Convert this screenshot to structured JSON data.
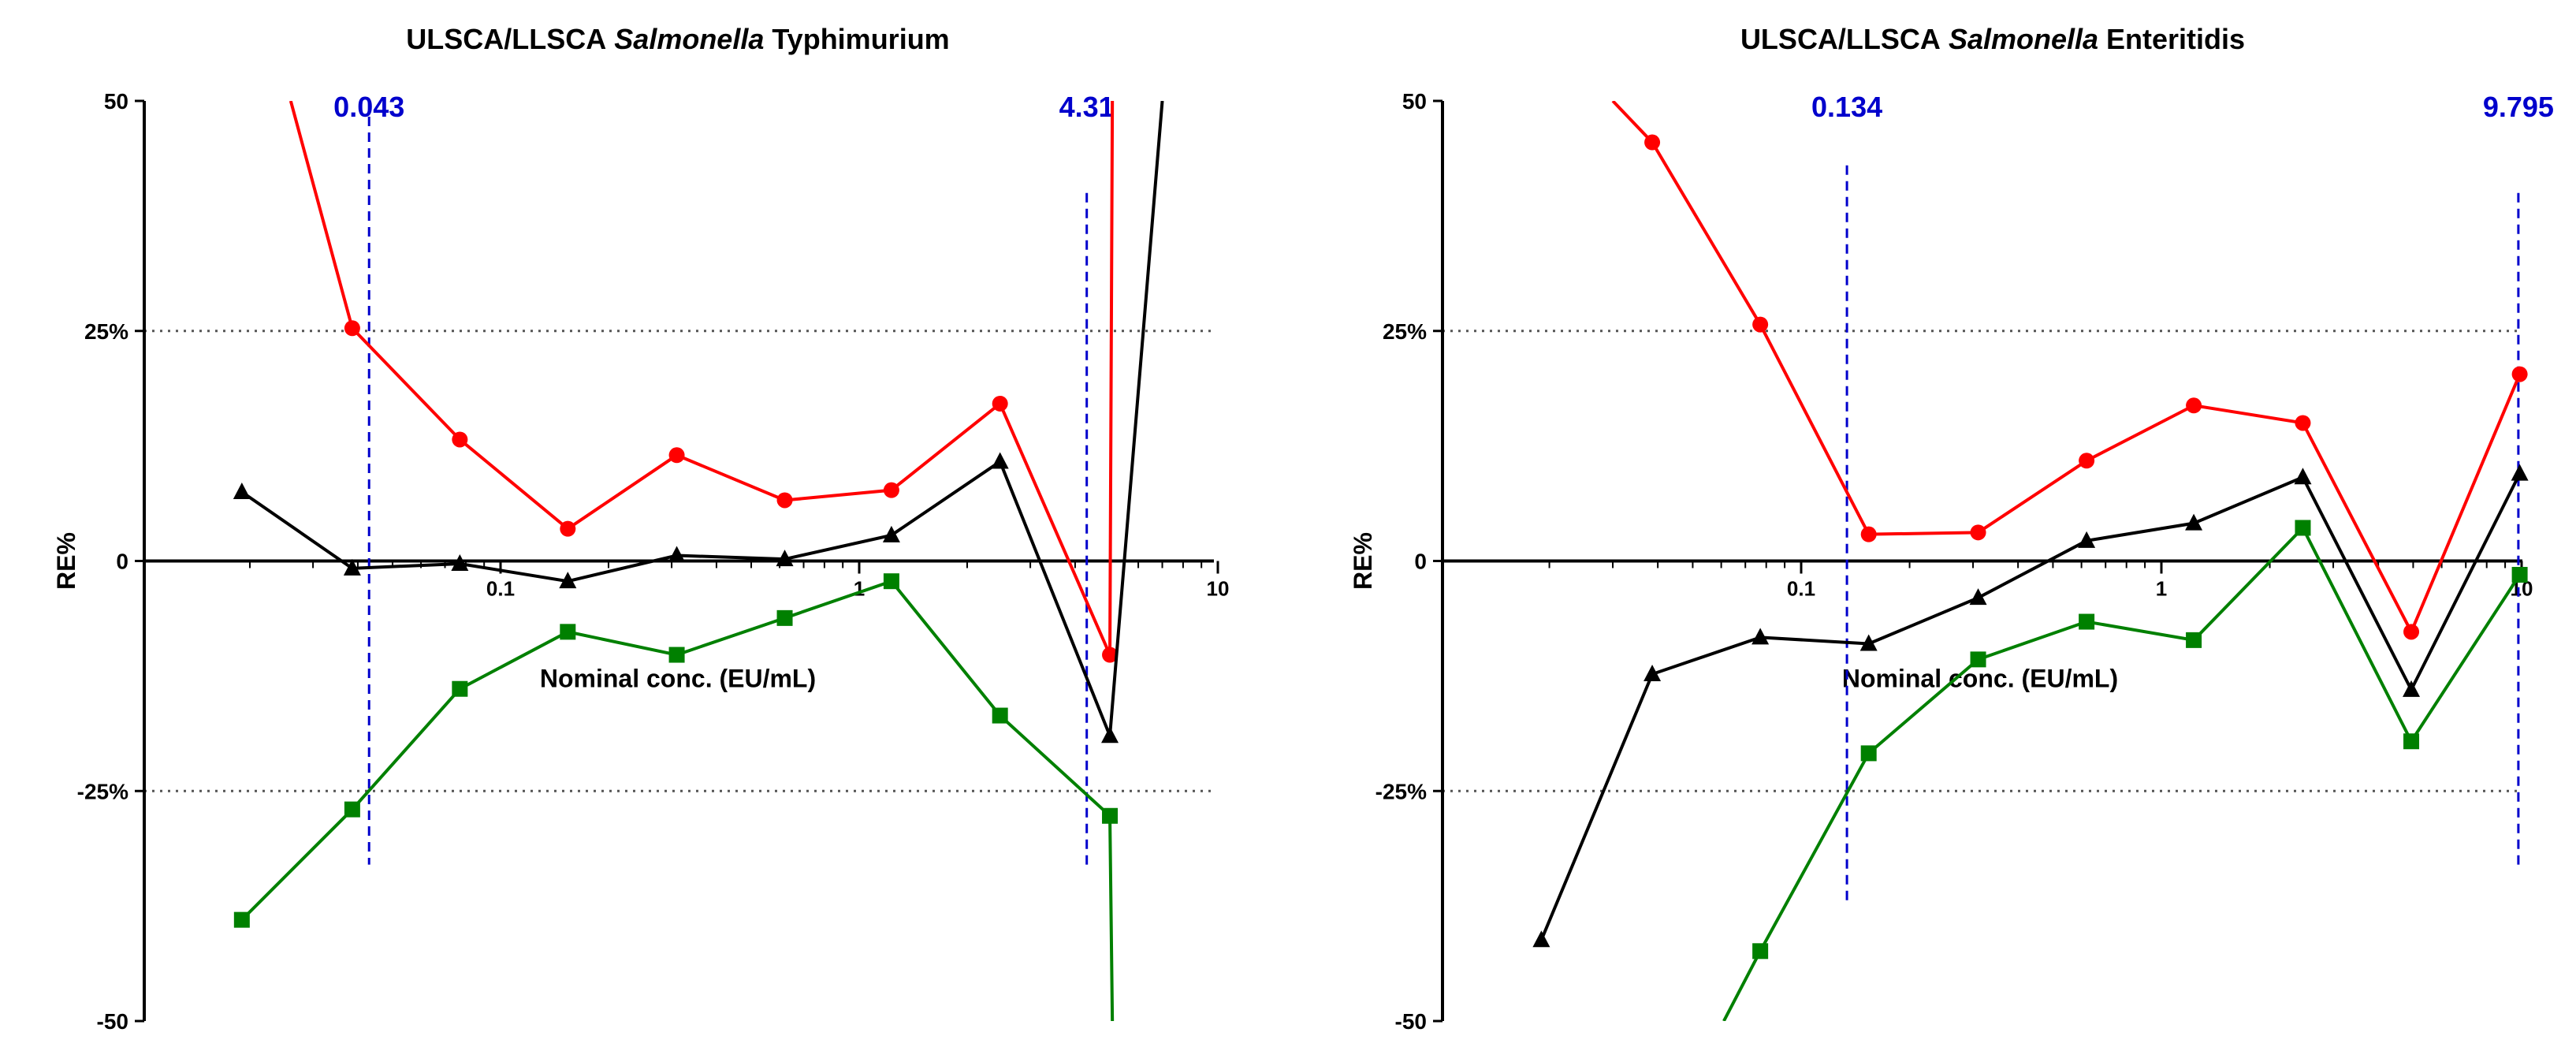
{
  "chart_data": [
    {
      "type": "line",
      "title_parts": {
        "prefix": "ULSCA/LLSCA ",
        "italic": "Salmonella",
        "suffix": " Typhimurium"
      },
      "xlabel": "Nominal conc. (EU/mL)",
      "ylabel": "RE%",
      "x_scale": "log",
      "xlim": [
        0.0145,
        10
      ],
      "ylim": [
        -50,
        50
      ],
      "x_tick_labels": [
        {
          "value": 0.1,
          "label": "0.1"
        },
        {
          "value": 1,
          "label": "1"
        },
        {
          "value": 10,
          "label": "10"
        }
      ],
      "y_tick_labels": [
        {
          "value": 50,
          "label": "50"
        },
        {
          "value": 25,
          "label": "25%"
        },
        {
          "value": 0,
          "label": "0"
        },
        {
          "value": -25,
          "label": "-25%"
        },
        {
          "value": -50,
          "label": "-50"
        }
      ],
      "reference_lines_y": [
        25,
        -25
      ],
      "vertical_markers": [
        {
          "x": 0.043,
          "label": "0.043",
          "ylim": [
            -33,
            50
          ]
        },
        {
          "x": 4.31,
          "label": "4.31",
          "ylim": [
            -33,
            40
          ]
        }
      ],
      "series": [
        {
          "color": "#ff0000",
          "marker": "circle",
          "points": [
            [
              0.026,
              50
            ],
            [
              0.0386,
              25.3
            ],
            [
              0.077,
              13.2
            ],
            [
              0.154,
              3.5
            ],
            [
              0.31,
              11.5
            ],
            [
              0.62,
              6.6
            ],
            [
              1.23,
              7.7
            ],
            [
              2.47,
              17.1
            ],
            [
              5.0,
              -10.2
            ],
            [
              5.08,
              50
            ]
          ]
        },
        {
          "color": "#000000",
          "marker": "triangle",
          "points": [
            [
              0.019,
              7.5
            ],
            [
              0.0386,
              -0.8
            ],
            [
              0.077,
              -0.3
            ],
            [
              0.154,
              -2.2
            ],
            [
              0.31,
              0.6
            ],
            [
              0.62,
              0.2
            ],
            [
              1.23,
              2.8
            ],
            [
              2.47,
              10.8
            ],
            [
              5.0,
              -19.0
            ],
            [
              7.0,
              50
            ]
          ]
        },
        {
          "color": "#008000",
          "marker": "square",
          "points": [
            [
              0.019,
              -39.0
            ],
            [
              0.0386,
              -27.0
            ],
            [
              0.077,
              -13.9
            ],
            [
              0.154,
              -7.7
            ],
            [
              0.31,
              -10.2
            ],
            [
              0.62,
              -6.2
            ],
            [
              1.23,
              -2.2
            ],
            [
              2.47,
              -16.8
            ],
            [
              5.0,
              -27.7
            ],
            [
              5.08,
              -50
            ]
          ]
        }
      ]
    },
    {
      "type": "line",
      "title_parts": {
        "prefix": "ULSCA/LLSCA ",
        "italic": "Salmonella",
        "suffix": " Enteritidis"
      },
      "xlabel": "Nominal conc. (EU/mL)",
      "ylabel": "RE%",
      "x_scale": "log",
      "xlim": [
        0.0145,
        10
      ],
      "ylim": [
        -50,
        50
      ],
      "x_tick_labels": [
        {
          "value": 0.1,
          "label": "0.1"
        },
        {
          "value": 1,
          "label": "1"
        },
        {
          "value": 10,
          "label": "10"
        }
      ],
      "y_tick_labels": [
        {
          "value": 50,
          "label": "50"
        },
        {
          "value": 25,
          "label": "25%"
        },
        {
          "value": 0,
          "label": "0"
        },
        {
          "value": -25,
          "label": "-25%"
        },
        {
          "value": -50,
          "label": "-50"
        }
      ],
      "reference_lines_y": [
        25,
        -25
      ],
      "vertical_markers": [
        {
          "x": 0.134,
          "label": "0.134",
          "ylim": [
            -37,
            43
          ]
        },
        {
          "x": 9.795,
          "label": "9.795",
          "ylim": [
            -33,
            40
          ]
        }
      ],
      "series": [
        {
          "color": "#ff0000",
          "marker": "circle",
          "points": [
            [
              0.03,
              50
            ],
            [
              0.0386,
              45.5
            ],
            [
              0.077,
              25.7
            ],
            [
              0.154,
              2.9
            ],
            [
              0.31,
              3.1
            ],
            [
              0.62,
              10.9
            ],
            [
              1.23,
              16.9
            ],
            [
              2.47,
              15.0
            ],
            [
              4.94,
              -7.7
            ],
            [
              9.88,
              20.3
            ]
          ]
        },
        {
          "color": "#000000",
          "marker": "triangle",
          "points": [
            [
              0.019,
              -41.2
            ],
            [
              0.0386,
              -12.3
            ],
            [
              0.077,
              -8.3
            ],
            [
              0.154,
              -9.0
            ],
            [
              0.31,
              -4.0
            ],
            [
              0.62,
              2.2
            ],
            [
              1.23,
              4.1
            ],
            [
              2.47,
              9.1
            ],
            [
              4.94,
              -14.0
            ],
            [
              9.88,
              9.5
            ]
          ]
        },
        {
          "color": "#008000",
          "marker": "square",
          "points": [
            [
              0.061,
              -50
            ],
            [
              0.077,
              -42.4
            ],
            [
              0.154,
              -20.9
            ],
            [
              0.31,
              -10.7
            ],
            [
              0.62,
              -6.6
            ],
            [
              1.23,
              -8.6
            ],
            [
              2.47,
              3.6
            ],
            [
              4.94,
              -19.6
            ],
            [
              9.88,
              -1.5
            ]
          ]
        }
      ]
    }
  ]
}
